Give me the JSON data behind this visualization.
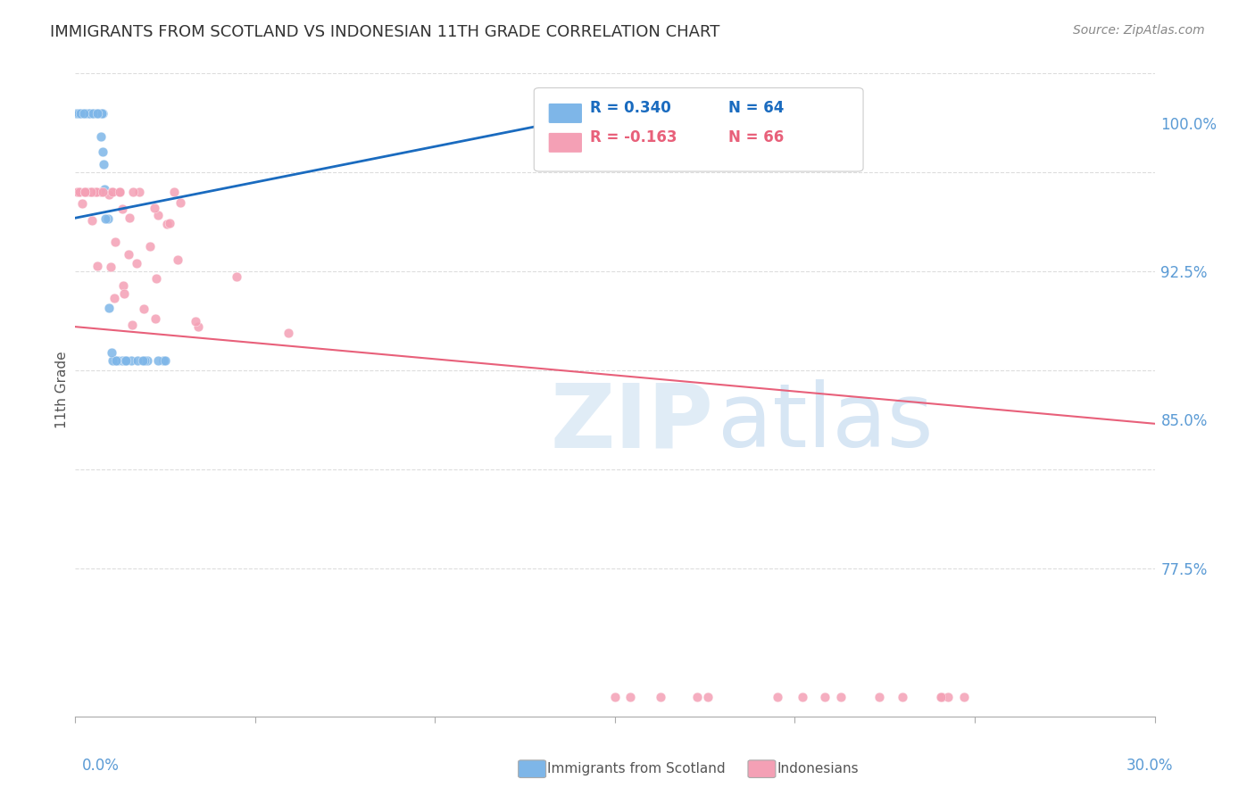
{
  "title": "IMMIGRANTS FROM SCOTLAND VS INDONESIAN 11TH GRADE CORRELATION CHART",
  "source": "Source: ZipAtlas.com",
  "ylabel": "11th Grade",
  "x_min": 0.0,
  "x_max": 0.3,
  "y_min": 0.7,
  "y_max": 1.03,
  "blue_color": "#7eb6e8",
  "pink_color": "#f4a0b5",
  "trendline_blue": "#1a6bbf",
  "trendline_pink": "#e8607a",
  "axis_label_color": "#5b9bd5",
  "blue_trend_x": [
    0.0,
    0.155
  ],
  "blue_trend_y": [
    0.952,
    1.008
  ],
  "pink_trend_x": [
    0.0,
    0.3
  ],
  "pink_trend_y": [
    0.897,
    0.848
  ]
}
